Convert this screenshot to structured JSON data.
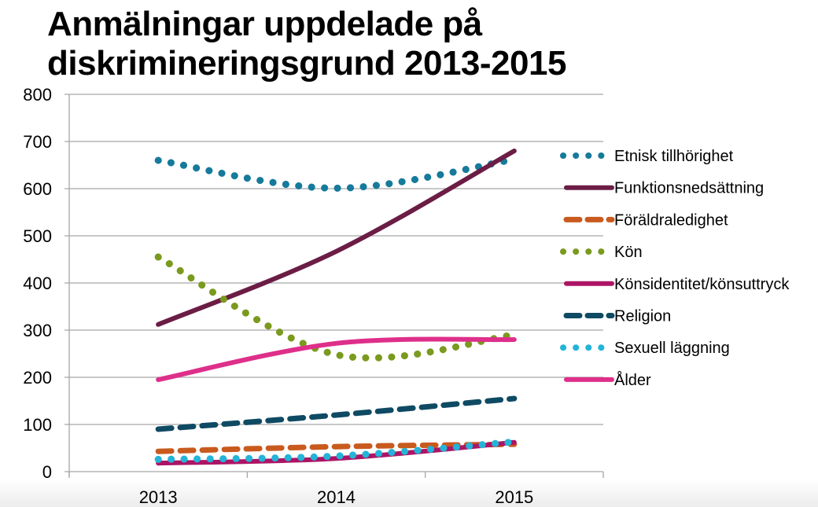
{
  "chart_data": {
    "type": "line",
    "title": "Anmälningar uppdelade på diskrimineringsgrund 2013-2015",
    "title_lines": [
      "Anmälningar uppdelade på",
      "diskrimineringsgrund 2013-2015"
    ],
    "xlabel": "",
    "ylabel": "",
    "categories": [
      "2013",
      "2014",
      "2015"
    ],
    "ylim": [
      0,
      800
    ],
    "yticks": [
      0,
      100,
      200,
      300,
      400,
      500,
      600,
      700,
      800
    ],
    "grid": true,
    "legend_position": "right",
    "smooth": true,
    "series": [
      {
        "name": "Etnisk tillhörighet",
        "values": [
          660,
          601,
          662
        ],
        "color": "#167a9b",
        "style": "dotted"
      },
      {
        "name": "Funktionsnedsättning",
        "values": [
          312,
          467,
          680
        ],
        "color": "#6b1d45",
        "style": "solid"
      },
      {
        "name": "Föräldraledighet",
        "values": [
          43,
          53,
          58
        ],
        "color": "#c95a1e",
        "style": "dashed"
      },
      {
        "name": "Kön",
        "values": [
          455,
          248,
          290
        ],
        "color": "#7a9a1e",
        "style": "dotted"
      },
      {
        "name": "Könsidentitet/könsuttryck",
        "values": [
          18,
          28,
          62
        ],
        "color": "#ad1465",
        "style": "solid"
      },
      {
        "name": "Religion",
        "values": [
          90,
          120,
          155
        ],
        "color": "#0f4a63",
        "style": "dashed"
      },
      {
        "name": "Sexuell läggning",
        "values": [
          26,
          33,
          63
        ],
        "color": "#23b4d8",
        "style": "dotted"
      },
      {
        "name": "Ålder",
        "values": [
          195,
          272,
          280
        ],
        "color": "#de2f8a",
        "style": "solid"
      }
    ]
  }
}
